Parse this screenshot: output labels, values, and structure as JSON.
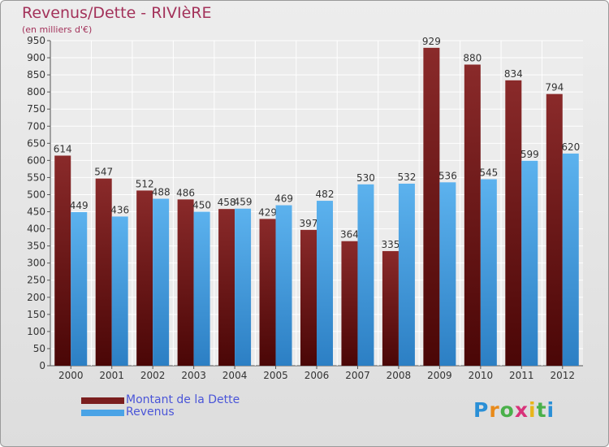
{
  "title": "Revenus/Dette - RIVIèRE",
  "subtitle": "(en milliers d'€)",
  "colors": {
    "debt": "#7a1e1e",
    "revenue": "#4aa3e6",
    "title": "#a3325a",
    "legend_text": "#4a55d8"
  },
  "chart_data": {
    "type": "bar",
    "categories": [
      "2000",
      "2001",
      "2002",
      "2003",
      "2004",
      "2005",
      "2006",
      "2007",
      "2008",
      "2009",
      "2010",
      "2011",
      "2012"
    ],
    "series": [
      {
        "name": "Montant de la Dette",
        "values": [
          614,
          547,
          512,
          486,
          458,
          429,
          397,
          364,
          335,
          929,
          880,
          834,
          794
        ]
      },
      {
        "name": "Revenus",
        "values": [
          449,
          436,
          488,
          450,
          459,
          469,
          482,
          530,
          532,
          536,
          545,
          599,
          620
        ]
      }
    ],
    "ylim": [
      0,
      950
    ],
    "ytick_step": 50,
    "grid": true,
    "legend_position": "bottom-left"
  },
  "legend": {
    "debt_label": "Montant de la Dette",
    "revenue_label": "Revenus"
  },
  "logo": {
    "letters": [
      "P",
      "r",
      "o",
      "x",
      "i",
      "t",
      "i"
    ],
    "colors": [
      "#2a8fd6",
      "#e88a1a",
      "#4ab04a",
      "#d8327a",
      "#e8b51a",
      "#4ab04a",
      "#2a8fd6"
    ]
  }
}
